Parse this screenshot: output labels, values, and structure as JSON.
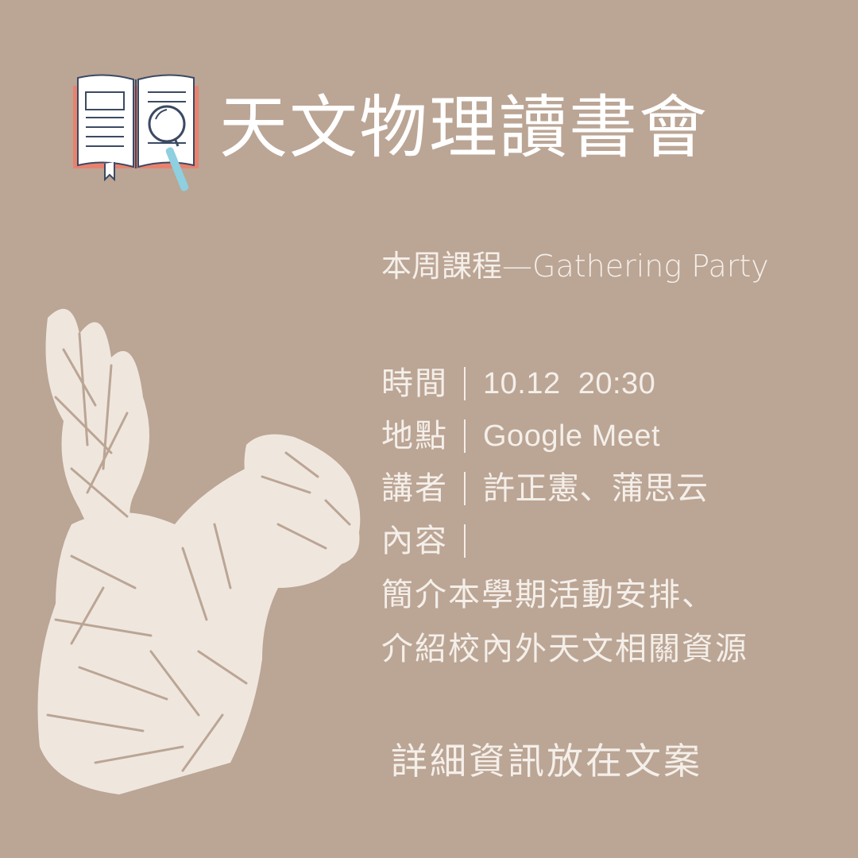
{
  "title": "天文物理讀書會",
  "subtitle": "本周課程—Gathering Party",
  "details": {
    "time": {
      "label": "時間",
      "value": "10.12  20:30"
    },
    "place": {
      "label": "地點",
      "value": "Google Meet"
    },
    "speaker": {
      "label": "講者",
      "value": "許正憲、蒲思云"
    },
    "content": {
      "label": "內容",
      "value": ""
    }
  },
  "description": [
    "簡介本學期活動安排、",
    "介紹校內外天文相關資源"
  ],
  "footer": "詳細資訊放在文案",
  "colors": {
    "background": "#bba595",
    "text": "#f4efe9",
    "title": "#ffffff",
    "book_cover": "#e8826f",
    "magnifier_handle": "#8ecfe0"
  },
  "icons": {
    "book": "open-book-with-magnifier-icon",
    "illustration": "squirrel-sketch"
  }
}
